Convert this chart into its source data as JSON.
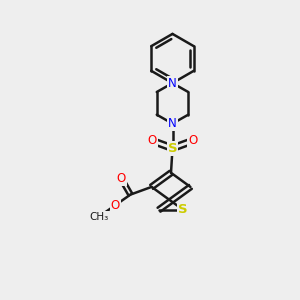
{
  "background_color": "#eeeeee",
  "bond_color": "#1a1a1a",
  "N_color": "#0000ff",
  "O_color": "#ff0000",
  "S_color": "#cccc00",
  "figsize": [
    3.0,
    3.0
  ],
  "dpi": 100,
  "xlim": [
    0,
    10
  ],
  "ylim": [
    0,
    10
  ]
}
